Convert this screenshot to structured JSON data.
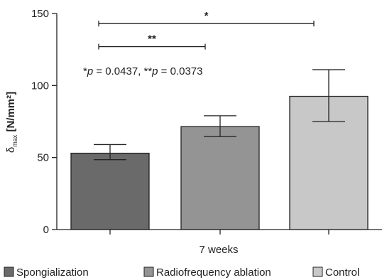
{
  "chart_data": {
    "type": "bar",
    "categories": [
      "Spongialization",
      "Radiofrequency ablation",
      "Control"
    ],
    "values": [
      53,
      71.5,
      92.5
    ],
    "errors": [
      {
        "low": 48.5,
        "high": 59
      },
      {
        "low": 64.5,
        "high": 79
      },
      {
        "low": 75,
        "high": 111
      }
    ],
    "colors": [
      "#6a6a6a",
      "#949494",
      "#c8c8c8"
    ],
    "xlabel": "7 weeks",
    "ylabel_main": "δ",
    "ylabel_sub": "max",
    "ylabel_rest": " [N/mm²]",
    "ylim": [
      0,
      150
    ],
    "yticks": [
      "0",
      "50",
      "100",
      "150"
    ],
    "ytick_values": [
      0,
      50,
      100,
      150
    ],
    "grid": false,
    "legend_position": "bottom",
    "significance": [
      {
        "from": 0,
        "to": 1,
        "y": 127,
        "label": "**"
      },
      {
        "from": 0,
        "to": 2,
        "y": 143,
        "label": "*"
      }
    ],
    "annotation": {
      "pre1": "*",
      "p1": "p",
      "mid": " = 0.0437, **",
      "p2": "p",
      "post": " = 0.0373"
    }
  }
}
